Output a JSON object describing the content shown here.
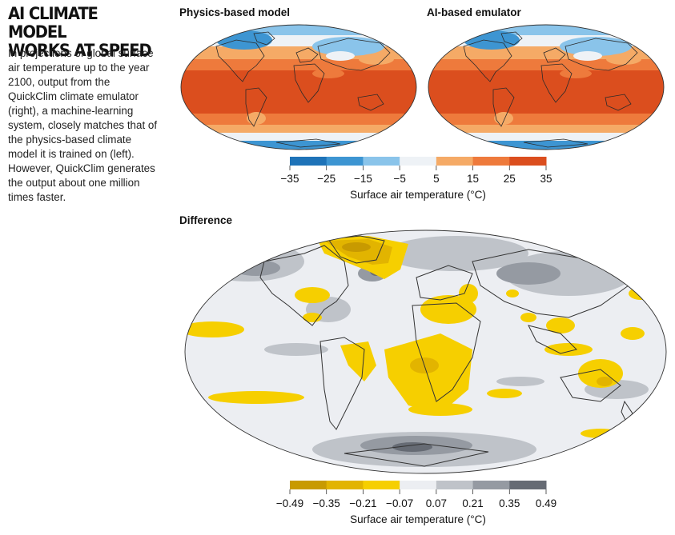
{
  "header": {
    "title_line1": "AI CLIMATE MODEL",
    "title_line2": "WORKS AT SPEED",
    "description": "In projections of global surface air temperature up to the year 2100, output from the QuickClim climate emulator (right), a machine-learning system, closely matches that of the physics-based climate model it is trained on (left). However, QuickClim generates the output about one million times faster."
  },
  "panels": {
    "physics_label": "Physics-based model",
    "emulator_label": "AI-based emulator",
    "difference_label": "Difference"
  },
  "temperature_colorbar": {
    "ticks": [
      "−35",
      "−25",
      "−15",
      "−5",
      "5",
      "15",
      "25",
      "35"
    ],
    "colors": [
      "#1e73b8",
      "#3d95d2",
      "#8ac4ea",
      "#eef2f6",
      "#f5aa66",
      "#ee7a3c",
      "#db4e1e"
    ],
    "title": "Surface air temperature (°C)"
  },
  "difference_colorbar": {
    "ticks": [
      "−0.49",
      "−0.35",
      "−0.21",
      "−0.07",
      "0.07",
      "0.21",
      "0.35",
      "0.49"
    ],
    "colors": [
      "#c89a00",
      "#e2b400",
      "#f6cf00",
      "#eceef2",
      "#bfc3c9",
      "#959aa2",
      "#666b74"
    ],
    "title": "Surface air temperature (°C)"
  }
}
